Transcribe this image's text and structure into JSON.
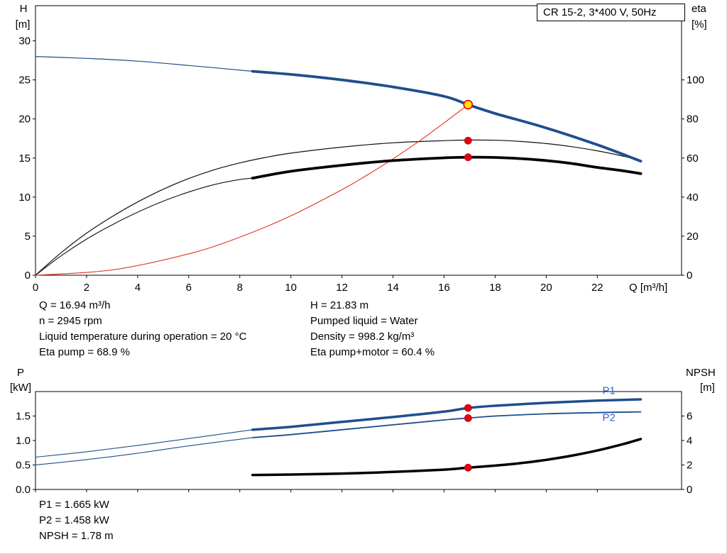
{
  "header": {
    "title_box": "CR 15-2, 3*400 V, 50Hz"
  },
  "info_top": {
    "left": [
      "Q = 16.94 m³/h",
      "n = 2945 rpm",
      "Liquid temperature during operation = 20 °C",
      "Eta pump = 68.9 %"
    ],
    "right": [
      "H = 21.83 m",
      "Pumped liquid = Water",
      "Density = 998.2 kg/m³",
      "Eta pump+motor = 60.4 %"
    ]
  },
  "info_bottom": {
    "lines": [
      "P1 = 1.665 kW",
      "P2 = 1.458 kW",
      "NPSH = 1.78 m"
    ]
  },
  "colors": {
    "curve_blue": "#1f4e8c",
    "label_blue": "#3068c0",
    "marker_red": "#e60012",
    "system_red": "#e0301e",
    "duty_yellow": "#ffe600",
    "curve_black": "#000000"
  },
  "chart_data": [
    {
      "type": "line",
      "name": "head-efficiency-chart",
      "title": "CR 15-2, 3*400 V, 50Hz",
      "axes": {
        "x": {
          "label": "Q [m³/h]",
          "min": 0,
          "max": 25.3,
          "ticks": [
            0,
            2,
            4,
            6,
            8,
            10,
            12,
            14,
            16,
            18,
            20,
            22
          ],
          "tick_labels": [
            "0",
            "2",
            "4",
            "6",
            "8",
            "10",
            "12",
            "14",
            "16",
            "18",
            "20",
            "22"
          ]
        },
        "y_left": {
          "label_lines": [
            "H",
            "[m]"
          ],
          "min": 0,
          "max": 34.5,
          "ticks": [
            0,
            5,
            10,
            15,
            20,
            25,
            30
          ],
          "tick_labels": [
            "0",
            "5",
            "10",
            "15",
            "20",
            "25",
            "30"
          ]
        },
        "y_right": {
          "label_lines": [
            "eta",
            "[%]"
          ],
          "min": 0,
          "max": 138,
          "ticks": [
            0,
            20,
            40,
            60,
            80,
            100
          ],
          "tick_labels": [
            "0",
            "20",
            "40",
            "60",
            "80",
            "100"
          ]
        }
      },
      "series": [
        {
          "name": "head-curve-extension",
          "axis": "left",
          "color": "#1f4e8c",
          "width": 1.2,
          "points": [
            [
              0,
              28.0
            ],
            [
              2,
              27.75
            ],
            [
              4,
              27.4
            ],
            [
              6,
              26.85
            ],
            [
              8.5,
              26.1
            ]
          ]
        },
        {
          "name": "eta-pump-motor-extension",
          "axis": "right",
          "color": "#111111",
          "width": 1.1,
          "points": [
            [
              0,
              0
            ],
            [
              1,
              9.9
            ],
            [
              2,
              18.5
            ],
            [
              3,
              25.8
            ],
            [
              4,
              32.3
            ],
            [
              5,
              37.9
            ],
            [
              6,
              42.6
            ],
            [
              7,
              46.4
            ],
            [
              8,
              49.0
            ],
            [
              8.5,
              49.7
            ]
          ]
        },
        {
          "name": "eta-pump-curve",
          "axis": "right",
          "color": "#111111",
          "width": 1.2,
          "points": [
            [
              0,
              0
            ],
            [
              1,
              11.5
            ],
            [
              2,
              21.5
            ],
            [
              3,
              30
            ],
            [
              4,
              37.5
            ],
            [
              5,
              44
            ],
            [
              6,
              49.5
            ],
            [
              7,
              54
            ],
            [
              8,
              57.5
            ],
            [
              9,
              60.3
            ],
            [
              10,
              62.5
            ],
            [
              12,
              65.6
            ],
            [
              14,
              67.8
            ],
            [
              16,
              68.9
            ],
            [
              17,
              69.2
            ],
            [
              18,
              69.1
            ],
            [
              19,
              68.5
            ],
            [
              20,
              67.4
            ],
            [
              21,
              65.8
            ],
            [
              22,
              63.7
            ],
            [
              23,
              61.0
            ],
            [
              23.7,
              58.7
            ]
          ]
        },
        {
          "name": "system-curve",
          "axis": "left",
          "color": "#e0301e",
          "width": 1.1,
          "points": [
            [
              0,
              0
            ],
            [
              3,
              0.68
            ],
            [
              6,
              2.74
            ],
            [
              8,
              4.87
            ],
            [
              10,
              7.6
            ],
            [
              12,
              10.95
            ],
            [
              13,
              12.85
            ],
            [
              14,
              14.9
            ],
            [
              15,
              17.1
            ],
            [
              16,
              19.5
            ],
            [
              16.94,
              21.83
            ]
          ]
        },
        {
          "name": "eta-pump-motor-curve",
          "axis": "right",
          "color": "#000000",
          "width": 3.8,
          "points": [
            [
              8.5,
              49.7
            ],
            [
              10,
              53.2
            ],
            [
              12,
              56.3
            ],
            [
              14,
              58.7
            ],
            [
              16,
              60.1
            ],
            [
              17,
              60.4
            ],
            [
              18,
              60.3
            ],
            [
              19,
              59.7
            ],
            [
              20,
              58.7
            ],
            [
              21,
              57.2
            ],
            [
              22,
              55.2
            ],
            [
              23,
              53.5
            ],
            [
              23.7,
              52.0
            ]
          ]
        },
        {
          "name": "head-curve",
          "axis": "left",
          "color": "#1f4e8c",
          "width": 3.8,
          "points": [
            [
              8.5,
              26.1
            ],
            [
              10,
              25.7
            ],
            [
              12,
              25.0
            ],
            [
              14,
              24.1
            ],
            [
              16,
              22.9
            ],
            [
              16.94,
              21.83
            ],
            [
              18,
              20.7
            ],
            [
              20,
              18.85
            ],
            [
              22,
              16.7
            ],
            [
              23.7,
              14.6
            ]
          ]
        }
      ],
      "markers": [
        {
          "name": "eta-pump-point",
          "axis": "right",
          "x": 16.94,
          "y": 68.9,
          "r": 5,
          "fill": "#e60012",
          "stroke": "#c00010",
          "stroke_width": 0.8
        },
        {
          "name": "eta-pump-motor-point",
          "axis": "right",
          "x": 16.94,
          "y": 60.4,
          "r": 5,
          "fill": "#e60012",
          "stroke": "#c00010",
          "stroke_width": 0.8
        },
        {
          "name": "duty-point",
          "axis": "left",
          "x": 16.94,
          "y": 21.83,
          "r": 6,
          "fill": "#ffe600",
          "stroke": "#e60012",
          "stroke_width": 1.6
        }
      ],
      "labels": []
    },
    {
      "type": "line",
      "name": "power-npsh-chart",
      "title": "",
      "axes": {
        "x": {
          "label": "",
          "min": 0,
          "max": 25.3,
          "ticks": [
            0,
            2,
            4,
            6,
            8,
            10,
            12,
            14,
            16,
            18,
            20,
            22
          ],
          "tick_labels": []
        },
        "y_left": {
          "label_lines": [
            "P",
            "[kW]"
          ],
          "min": 0,
          "max": 2.0,
          "ticks": [
            0,
            0.5,
            1,
            1.5
          ],
          "tick_labels": [
            "0.0",
            "0.5",
            "1.0",
            "1.5"
          ]
        },
        "y_right": {
          "label_lines": [
            "NPSH",
            "[m]"
          ],
          "min": 0,
          "max": 8,
          "ticks": [
            0,
            2,
            4,
            6
          ],
          "tick_labels": [
            "0",
            "2",
            "4",
            "6"
          ]
        }
      },
      "series": [
        {
          "name": "p1-curve-extension",
          "axis": "left",
          "color": "#1f4e8c",
          "width": 1.1,
          "points": [
            [
              0,
              0.66
            ],
            [
              2,
              0.77
            ],
            [
              4,
              0.9
            ],
            [
              6,
              1.04
            ],
            [
              8.5,
              1.22
            ]
          ]
        },
        {
          "name": "p2-curve-extension",
          "axis": "left",
          "color": "#1f4e8c",
          "width": 1.1,
          "points": [
            [
              0,
              0.5
            ],
            [
              2,
              0.61
            ],
            [
              4,
              0.74
            ],
            [
              6,
              0.89
            ],
            [
              8.5,
              1.06
            ]
          ]
        },
        {
          "name": "p1-curve",
          "axis": "left",
          "color": "#1f4e8c",
          "width": 3.5,
          "points": [
            [
              8.5,
              1.22
            ],
            [
              10,
              1.28
            ],
            [
              12,
              1.38
            ],
            [
              14,
              1.48
            ],
            [
              16,
              1.59
            ],
            [
              16.94,
              1.665
            ],
            [
              18,
              1.71
            ],
            [
              20,
              1.77
            ],
            [
              22,
              1.815
            ],
            [
              23.7,
              1.84
            ]
          ]
        },
        {
          "name": "p2-curve",
          "axis": "left",
          "color": "#1f4e8c",
          "width": 1.8,
          "points": [
            [
              8.5,
              1.06
            ],
            [
              10,
              1.12
            ],
            [
              12,
              1.22
            ],
            [
              14,
              1.32
            ],
            [
              16,
              1.42
            ],
            [
              16.94,
              1.458
            ],
            [
              18,
              1.5
            ],
            [
              20,
              1.545
            ],
            [
              22,
              1.57
            ],
            [
              23.7,
              1.585
            ]
          ]
        },
        {
          "name": "npsh-curve",
          "axis": "right",
          "color": "#000000",
          "width": 3.5,
          "points": [
            [
              8.5,
              1.18
            ],
            [
              10,
              1.22
            ],
            [
              12,
              1.3
            ],
            [
              14,
              1.43
            ],
            [
              16,
              1.62
            ],
            [
              16.94,
              1.78
            ],
            [
              18,
              1.95
            ],
            [
              19,
              2.15
            ],
            [
              20,
              2.42
            ],
            [
              21,
              2.76
            ],
            [
              22,
              3.18
            ],
            [
              23,
              3.7
            ],
            [
              23.7,
              4.12
            ]
          ]
        }
      ],
      "markers": [
        {
          "name": "p1-point",
          "axis": "left",
          "x": 16.94,
          "y": 1.665,
          "r": 5,
          "fill": "#e60012",
          "stroke": "#c00010",
          "stroke_width": 0.8
        },
        {
          "name": "p2-point",
          "axis": "left",
          "x": 16.94,
          "y": 1.458,
          "r": 5,
          "fill": "#e60012",
          "stroke": "#c00010",
          "stroke_width": 0.8
        },
        {
          "name": "npsh-point",
          "axis": "right",
          "x": 16.94,
          "y": 1.78,
          "r": 5,
          "fill": "#e60012",
          "stroke": "#c00010",
          "stroke_width": 0.8
        }
      ],
      "labels": [
        {
          "name": "p1-curve-label",
          "text": "P1",
          "axis": "left",
          "x": 22.2,
          "y": 1.95,
          "color": "#3068c0"
        },
        {
          "name": "p2-curve-label",
          "text": "P2",
          "axis": "left",
          "x": 22.2,
          "y": 1.4,
          "color": "#3068c0"
        }
      ]
    }
  ]
}
